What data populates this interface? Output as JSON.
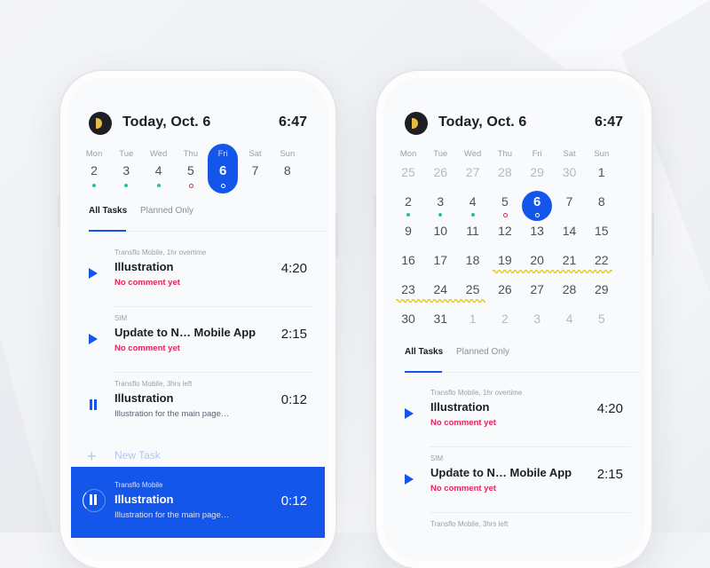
{
  "colors": {
    "accent": "#1455ea",
    "danger": "#e3245d",
    "success": "#20c69a",
    "logo_mark": "#e7b947"
  },
  "left": {
    "header": {
      "logo_icon": "app-logo",
      "title": "Today, Oct. 6",
      "clock": "6:47"
    },
    "week": [
      {
        "day": "Mon",
        "num": "2",
        "marker": "green"
      },
      {
        "day": "Tue",
        "num": "3",
        "marker": "green"
      },
      {
        "day": "Wed",
        "num": "4",
        "marker": "green"
      },
      {
        "day": "Thu",
        "num": "5",
        "marker": "red"
      },
      {
        "day": "Fri",
        "num": "6",
        "marker": "white",
        "selected": true
      },
      {
        "day": "Sat",
        "num": "7",
        "marker": "none"
      },
      {
        "day": "Sun",
        "num": "8",
        "marker": "none"
      }
    ],
    "tabs": {
      "all": "All Tasks",
      "planned": "Planned Only"
    },
    "tasks": [
      {
        "meta": "Transflo Mobile, 1hr overtime",
        "name": "Illustration",
        "comment": "No comment yet",
        "time": "4:20",
        "state": "play"
      },
      {
        "meta": "SIM",
        "name": "Update to N… Mobile App",
        "comment": "No comment yet",
        "time": "2:15",
        "state": "play"
      },
      {
        "meta": "Transflo Mobile, 3hrs left",
        "name": "Illustration",
        "desc": "Illustration for the main page…",
        "time": "0:12",
        "state": "pause"
      }
    ],
    "new_task": "New Task",
    "active_task": {
      "meta": "Transflo Mobile",
      "name": "Illustration",
      "desc": "Illustration for the main page…",
      "time": "0:12",
      "state": "pause"
    }
  },
  "right": {
    "header": {
      "logo_icon": "app-logo",
      "title": "Today, Oct. 6",
      "clock": "6:47"
    },
    "weekdays": [
      "Mon",
      "Tue",
      "Wed",
      "Thu",
      "Fri",
      "Sat",
      "Sun"
    ],
    "month": [
      [
        {
          "n": "25",
          "muted": true
        },
        {
          "n": "26",
          "muted": true
        },
        {
          "n": "27",
          "muted": true
        },
        {
          "n": "28",
          "muted": true
        },
        {
          "n": "29",
          "muted": true
        },
        {
          "n": "30",
          "muted": true
        },
        {
          "n": "1"
        }
      ],
      [
        {
          "n": "2",
          "marker": "green"
        },
        {
          "n": "3",
          "marker": "green"
        },
        {
          "n": "4",
          "marker": "green"
        },
        {
          "n": "5",
          "marker": "red"
        },
        {
          "n": "6",
          "selected": true,
          "marker": "white"
        },
        {
          "n": "7"
        },
        {
          "n": "8"
        }
      ],
      [
        {
          "n": "9"
        },
        {
          "n": "10"
        },
        {
          "n": "11"
        },
        {
          "n": "12"
        },
        {
          "n": "13"
        },
        {
          "n": "14"
        },
        {
          "n": "15"
        }
      ],
      [
        {
          "n": "16"
        },
        {
          "n": "17"
        },
        {
          "n": "18"
        },
        {
          "n": "19",
          "range": true
        },
        {
          "n": "20",
          "range": true
        },
        {
          "n": "21",
          "range": true
        },
        {
          "n": "22",
          "range": true
        }
      ],
      [
        {
          "n": "23",
          "range": true
        },
        {
          "n": "24",
          "range": true
        },
        {
          "n": "25",
          "range": true
        },
        {
          "n": "26"
        },
        {
          "n": "27"
        },
        {
          "n": "28"
        },
        {
          "n": "29"
        }
      ],
      [
        {
          "n": "30"
        },
        {
          "n": "31"
        },
        {
          "n": "1",
          "muted": true
        },
        {
          "n": "2",
          "muted": true
        },
        {
          "n": "3",
          "muted": true
        },
        {
          "n": "4",
          "muted": true
        },
        {
          "n": "5",
          "muted": true
        }
      ]
    ],
    "tabs": {
      "all": "All Tasks",
      "planned": "Planned Only"
    },
    "tasks": [
      {
        "meta": "Transflo Mobile, 1hr overtime",
        "name": "Illustration",
        "comment": "No comment yet",
        "time": "4:20",
        "state": "play"
      },
      {
        "meta": "SIM",
        "name": "Update to N… Mobile App",
        "comment": "No comment yet",
        "time": "2:15",
        "state": "play"
      },
      {
        "meta": "Transflo Mobile, 3hrs left",
        "name": "",
        "comment": "",
        "time": "",
        "state": "none"
      }
    ]
  }
}
